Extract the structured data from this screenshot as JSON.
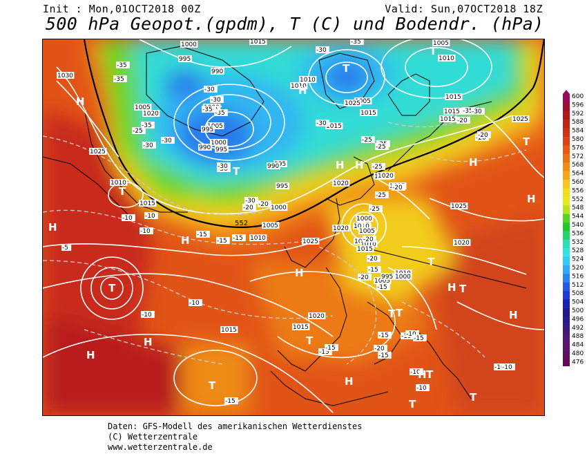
{
  "header": {
    "init": "Init : Mon,01OCT2018 00Z",
    "valid": "Valid: Sun,07OCT2018 18Z",
    "title": "500 hPa Geopot.(gpdm), T (C) und Bodendr. (hPa)"
  },
  "legend": {
    "values": [
      "600",
      "596",
      "592",
      "588",
      "584",
      "580",
      "576",
      "572",
      "568",
      "564",
      "560",
      "556",
      "552",
      "548",
      "544",
      "540",
      "536",
      "532",
      "528",
      "524",
      "520",
      "516",
      "512",
      "508",
      "504",
      "500",
      "496",
      "492",
      "488",
      "484",
      "480",
      "476"
    ],
    "colors": [
      "#9b0a5a",
      "#a01030",
      "#b01818",
      "#c02418",
      "#cc3418",
      "#dc4418",
      "#e45a14",
      "#ea7214",
      "#f08c14",
      "#f4a818",
      "#f6c41c",
      "#f2dc1e",
      "#e4ea1e",
      "#b4e41c",
      "#5ad222",
      "#22c828",
      "#22d46e",
      "#2ce0b4",
      "#30e4e4",
      "#30ccf4",
      "#30aaf2",
      "#2c84ec",
      "#265ae4",
      "#2038d4",
      "#1c20b8",
      "#1e1a8e",
      "#2c1a8a",
      "#3e1a80",
      "#501874",
      "#5a146a",
      "#620e5e",
      "#6a0858"
    ]
  },
  "map": {
    "pressure_labels": [
      {
        "text": "1000"
      },
      {
        "text": "1015"
      },
      {
        "text": "995"
      },
      {
        "text": "990"
      },
      {
        "text": "1030"
      },
      {
        "text": "1010"
      },
      {
        "text": "1005"
      },
      {
        "text": "1000"
      },
      {
        "text": "1020"
      },
      {
        "text": "1025"
      },
      {
        "text": "1010"
      },
      {
        "text": "1015"
      },
      {
        "text": "1005"
      },
      {
        "text": "1000"
      },
      {
        "text": "995"
      },
      {
        "text": "990"
      },
      {
        "text": "995"
      },
      {
        "text": "995"
      },
      {
        "text": "990"
      },
      {
        "text": "995"
      },
      {
        "text": "1000"
      },
      {
        "text": "1005"
      },
      {
        "text": "1010"
      },
      {
        "text": "1025"
      },
      {
        "text": "1020"
      },
      {
        "text": "1010"
      },
      {
        "text": "1015"
      },
      {
        "text": "1020"
      },
      {
        "text": "1005"
      },
      {
        "text": "1010"
      },
      {
        "text": "1000"
      },
      {
        "text": "1025"
      },
      {
        "text": "1020"
      },
      {
        "text": "1015"
      },
      {
        "text": "1010"
      },
      {
        "text": "1005"
      },
      {
        "text": "1000"
      },
      {
        "text": "995"
      },
      {
        "text": "1015"
      },
      {
        "text": "1015"
      },
      {
        "text": "1020"
      },
      {
        "text": "1025"
      },
      {
        "text": "1020"
      },
      {
        "text": "1015"
      },
      {
        "text": "1015"
      },
      {
        "text": "1015"
      },
      {
        "text": "1015"
      },
      {
        "text": "1010"
      },
      {
        "text": "1005"
      },
      {
        "text": "1015"
      },
      {
        "text": "1010"
      },
      {
        "text": "1020"
      },
      {
        "text": "1015"
      },
      {
        "text": "1025"
      },
      {
        "text": "1005"
      },
      {
        "text": "1010"
      }
    ],
    "temp_labels": [
      {
        "text": "-35"
      },
      {
        "text": "-35"
      },
      {
        "text": "-30"
      },
      {
        "text": "-35"
      },
      {
        "text": "-30"
      },
      {
        "text": "-30"
      },
      {
        "text": "-35"
      },
      {
        "text": "-35"
      },
      {
        "text": "-30"
      },
      {
        "text": "-25"
      },
      {
        "text": "-35"
      },
      {
        "text": "-30"
      },
      {
        "text": "-30"
      },
      {
        "text": "-25"
      },
      {
        "text": "-30"
      },
      {
        "text": "-30"
      },
      {
        "text": "-30"
      },
      {
        "text": "-35"
      },
      {
        "text": "-30"
      },
      {
        "text": "-25"
      },
      {
        "text": "-25"
      },
      {
        "text": "-20"
      },
      {
        "text": "-20"
      },
      {
        "text": "-20"
      },
      {
        "text": "-25"
      },
      {
        "text": "-20"
      },
      {
        "text": "-10"
      },
      {
        "text": "-10"
      },
      {
        "text": "-15"
      },
      {
        "text": "-15"
      },
      {
        "text": "-15"
      },
      {
        "text": "-10"
      },
      {
        "text": "-5"
      },
      {
        "text": "-15"
      },
      {
        "text": "-10"
      },
      {
        "text": "-10"
      },
      {
        "text": "-20"
      },
      {
        "text": "-20"
      },
      {
        "text": "-25"
      },
      {
        "text": "-20"
      },
      {
        "text": "-15"
      },
      {
        "text": "-20"
      },
      {
        "text": "-15"
      },
      {
        "text": "-15"
      },
      {
        "text": "-15"
      },
      {
        "text": "-15"
      },
      {
        "text": "-15"
      },
      {
        "text": "-15"
      },
      {
        "text": "-10"
      },
      {
        "text": "-10"
      },
      {
        "text": "-10"
      },
      {
        "text": "-10"
      },
      {
        "text": "-20"
      },
      {
        "text": "-20"
      },
      {
        "text": "-25"
      },
      {
        "text": "-15"
      },
      {
        "text": "-10"
      }
    ],
    "geopot_label": "552",
    "high_label": "H",
    "low_label": "T"
  },
  "footer": {
    "line1": "Daten: GFS-Modell des amerikanischen Wetterdienstes",
    "line2": "(C) Wetterzentrale",
    "line3": "www.wetterzentrale.de"
  }
}
